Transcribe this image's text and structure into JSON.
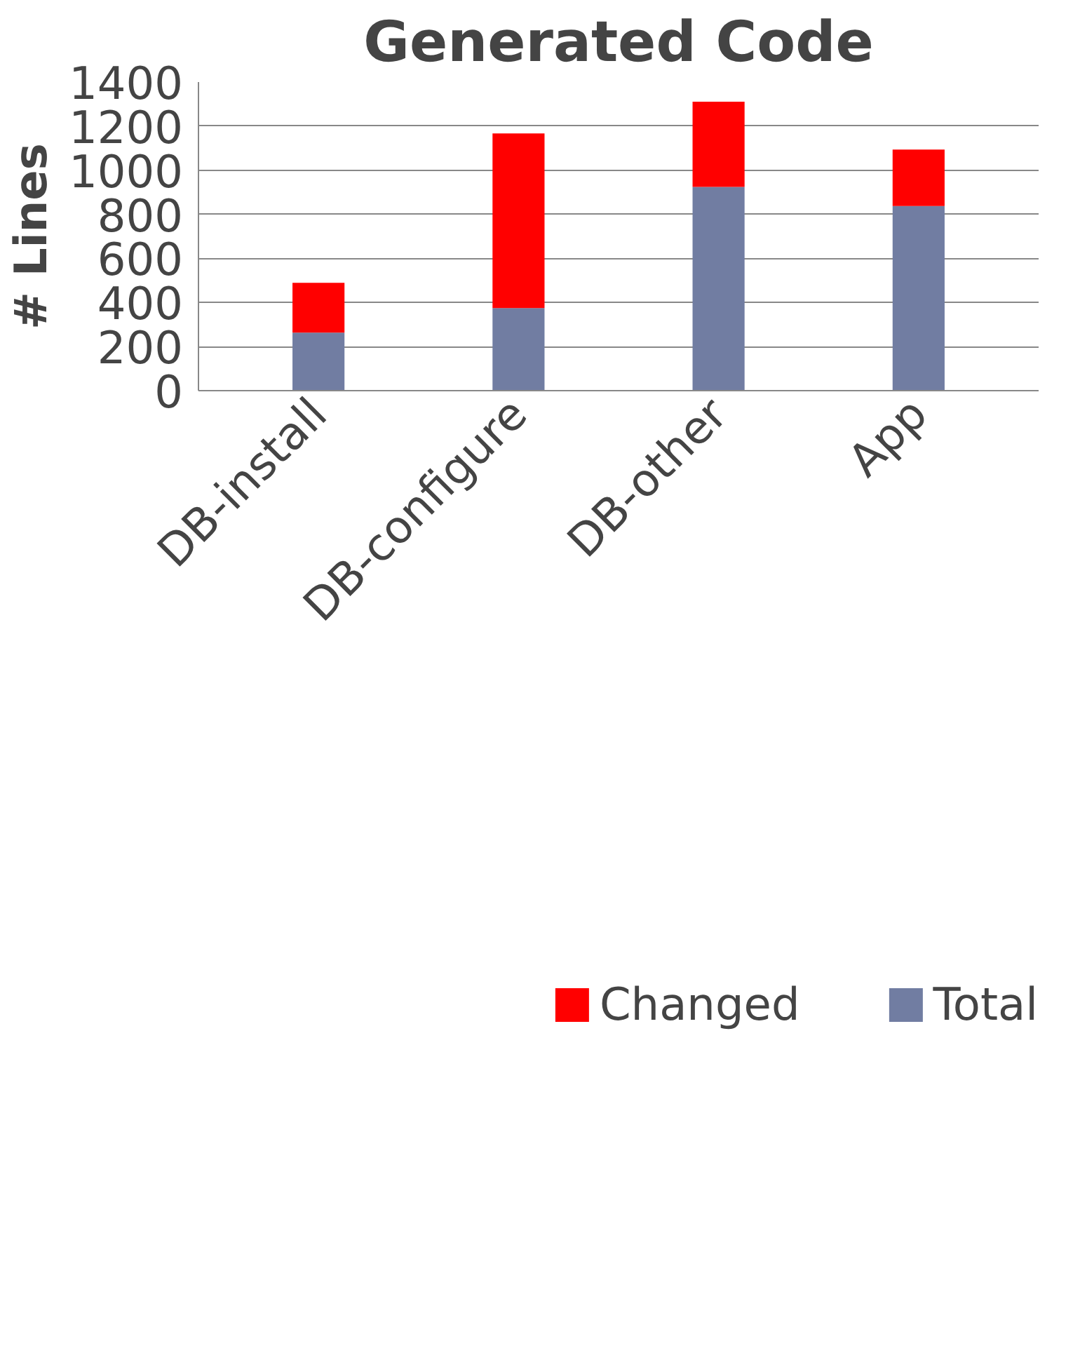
{
  "chart_data": {
    "type": "bar",
    "title": "Generated Code",
    "ylabel": "# Lines",
    "categories": [
      "DB-install",
      "DB-configure",
      "DB-other",
      "App"
    ],
    "stacked": true,
    "series": [
      {
        "name": "Total",
        "color": "#717da2",
        "values": [
          263,
          375,
          924,
          838
        ]
      },
      {
        "name": "Changed",
        "color": "#ff0000",
        "values": [
          226,
          792,
          387,
          256
        ]
      }
    ],
    "ylim": [
      0,
      1400
    ],
    "yticks": [
      0,
      200,
      400,
      600,
      800,
      1000,
      1200,
      1400
    ],
    "grid": "y",
    "legend": "bottom"
  }
}
